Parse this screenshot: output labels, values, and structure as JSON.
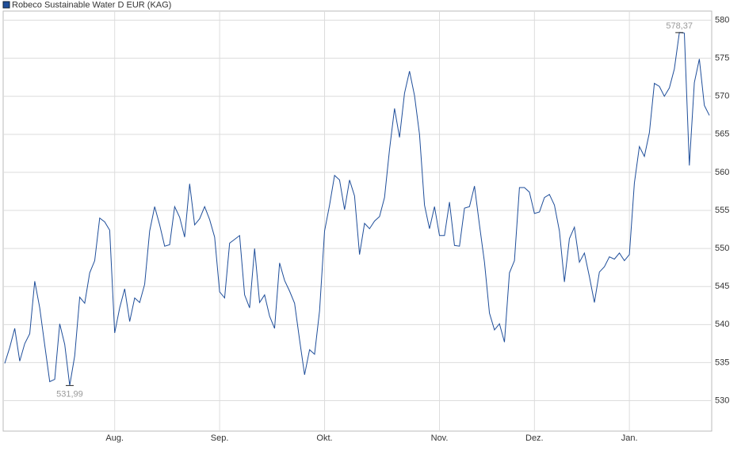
{
  "chart_data": {
    "type": "line",
    "categories": [
      null,
      null,
      null,
      null,
      null,
      null,
      null,
      null,
      null,
      null,
      null,
      null,
      null,
      null,
      null,
      null,
      null,
      null,
      null,
      null,
      null,
      null,
      "Aug.",
      null,
      null,
      null,
      null,
      null,
      null,
      null,
      null,
      null,
      null,
      null,
      null,
      null,
      null,
      null,
      null,
      null,
      null,
      null,
      null,
      "Sep.",
      null,
      null,
      null,
      null,
      null,
      null,
      null,
      null,
      null,
      null,
      null,
      null,
      null,
      null,
      null,
      null,
      null,
      null,
      null,
      null,
      "Okt.",
      null,
      null,
      null,
      null,
      null,
      null,
      null,
      null,
      null,
      null,
      null,
      null,
      null,
      null,
      null,
      null,
      null,
      null,
      null,
      null,
      null,
      null,
      "Nov.",
      null,
      null,
      null,
      null,
      null,
      null,
      null,
      null,
      null,
      null,
      null,
      null,
      null,
      null,
      null,
      null,
      null,
      null,
      "Dez.",
      null,
      null,
      null,
      null,
      null,
      null,
      null,
      null,
      null,
      null,
      null,
      null,
      null,
      null,
      null,
      null,
      null,
      null,
      "Jan.",
      null,
      null,
      null,
      null,
      null,
      null,
      null,
      null,
      null,
      null,
      null,
      null,
      null,
      null,
      null,
      null
    ],
    "series": [
      {
        "name": "Robeco Sustainable Water D EUR (KAG)",
        "color": "#1f4e9a",
        "values": [
          534.9,
          537,
          539.5,
          535.2,
          537.5,
          538.8,
          545.7,
          542.2,
          537.3,
          532.5,
          532.8,
          540.1,
          537.4,
          531.99,
          535.9,
          543.6,
          542.8,
          546.8,
          548.4,
          554,
          553.5,
          552.4,
          538.9,
          542.2,
          544.7,
          540.4,
          543.5,
          542.9,
          545.3,
          552.3,
          555.5,
          553.1,
          550.3,
          550.5,
          555.5,
          554.1,
          551.5,
          558.5,
          553.1,
          553.9,
          555.5,
          553.8,
          551.5,
          544.3,
          543.5,
          550.7,
          551.2,
          551.7,
          543.9,
          542.2,
          550,
          542.9,
          543.9,
          541.1,
          539.5,
          548.1,
          545.8,
          544.4,
          542.8,
          538,
          533.4,
          536.7,
          536.1,
          541.8,
          552.3,
          555.7,
          559.6,
          559,
          555.1,
          559,
          556.9,
          549.2,
          553.3,
          552.6,
          553.6,
          554.2,
          556.7,
          563,
          568.4,
          564.6,
          570.4,
          573.3,
          570.1,
          565,
          555.7,
          552.6,
          555.5,
          551.7,
          551.7,
          556.1,
          550.4,
          550.3,
          555.3,
          555.5,
          558.2,
          553.1,
          548.2,
          541.5,
          539.3,
          540.1,
          537.7,
          546.8,
          548.4,
          558,
          558,
          557.4,
          554.6,
          554.8,
          556.7,
          557.1,
          555.7,
          552.3,
          545.6,
          551.3,
          552.8,
          548.2,
          549.4,
          546.3,
          542.9,
          546.9,
          547.6,
          548.9,
          548.6,
          549.4,
          548.4,
          549.2,
          558.6,
          563.4,
          562.1,
          565.2,
          571.7,
          571.3,
          570,
          571.1,
          573.6,
          578.37,
          578.3,
          560.9,
          571.8,
          574.9,
          568.8,
          567.5
        ],
        "value_labels": [
          null,
          null,
          null,
          null,
          null,
          null,
          null,
          null,
          null,
          null,
          null,
          null,
          null,
          "531,99",
          null,
          null,
          null,
          null,
          null,
          null,
          null,
          null,
          null,
          null,
          null,
          null,
          null,
          null,
          null,
          null,
          null,
          null,
          null,
          null,
          null,
          null,
          null,
          null,
          null,
          null,
          null,
          null,
          null,
          null,
          null,
          null,
          null,
          null,
          null,
          null,
          null,
          null,
          null,
          null,
          null,
          null,
          null,
          null,
          null,
          null,
          null,
          null,
          null,
          null,
          null,
          null,
          null,
          null,
          null,
          null,
          null,
          null,
          null,
          null,
          null,
          null,
          null,
          null,
          null,
          null,
          null,
          null,
          null,
          null,
          null,
          null,
          null,
          null,
          null,
          null,
          null,
          null,
          null,
          null,
          null,
          null,
          null,
          null,
          null,
          null,
          null,
          null,
          null,
          null,
          null,
          null,
          null,
          null,
          null,
          null,
          null,
          null,
          null,
          null,
          null,
          null,
          null,
          null,
          null,
          null,
          null,
          null,
          null,
          null,
          null,
          null,
          null,
          null,
          null,
          null,
          null,
          null,
          null,
          null,
          null,
          "578,37",
          null,
          null,
          null,
          null,
          null,
          null
        ]
      }
    ],
    "ylim": [
      526,
      581.2
    ],
    "yticks": [
      530,
      535,
      540,
      545,
      550,
      555,
      560,
      565,
      570,
      575,
      580
    ],
    "grid": true
  }
}
